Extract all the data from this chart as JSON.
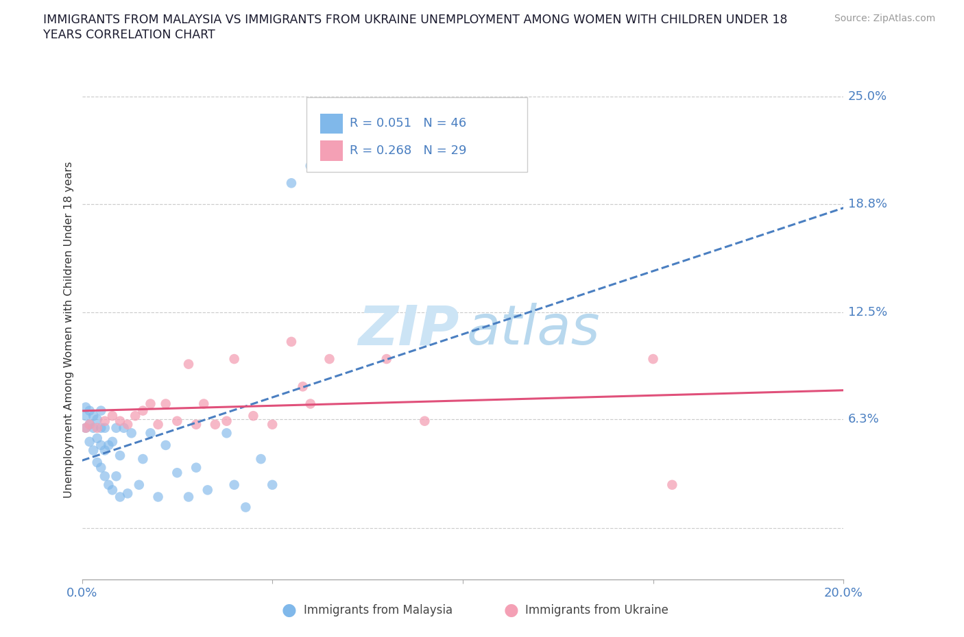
{
  "title_line1": "IMMIGRANTS FROM MALAYSIA VS IMMIGRANTS FROM UKRAINE UNEMPLOYMENT AMONG WOMEN WITH CHILDREN UNDER 18",
  "title_line2": "YEARS CORRELATION CHART",
  "source_text": "Source: ZipAtlas.com",
  "ylabel": "Unemployment Among Women with Children Under 18 years",
  "xlim": [
    0.0,
    0.2
  ],
  "ylim": [
    -0.03,
    0.26
  ],
  "xtick_positions": [
    0.0,
    0.05,
    0.1,
    0.15,
    0.2
  ],
  "xtick_labels": [
    "0.0%",
    "",
    "",
    "",
    "20.0%"
  ],
  "ytick_vals": [
    0.0,
    0.063,
    0.125,
    0.188,
    0.25
  ],
  "ytick_labels": [
    "",
    "6.3%",
    "12.5%",
    "18.8%",
    "25.0%"
  ],
  "grid_color": "#cccccc",
  "background_color": "#ffffff",
  "malaysia_color": "#80b8ea",
  "ukraine_color": "#f4a0b5",
  "trend_malaysia_color": "#4a7fc1",
  "trend_ukraine_color": "#e0507a",
  "r_malaysia": 0.051,
  "n_malaysia": 46,
  "r_ukraine": 0.268,
  "n_ukraine": 29,
  "malaysia_x": [
    0.001,
    0.001,
    0.001,
    0.002,
    0.002,
    0.002,
    0.003,
    0.003,
    0.003,
    0.004,
    0.004,
    0.004,
    0.005,
    0.005,
    0.005,
    0.005,
    0.006,
    0.006,
    0.006,
    0.007,
    0.007,
    0.008,
    0.008,
    0.009,
    0.009,
    0.01,
    0.01,
    0.011,
    0.012,
    0.013,
    0.015,
    0.016,
    0.018,
    0.02,
    0.022,
    0.025,
    0.028,
    0.03,
    0.033,
    0.038,
    0.04,
    0.043,
    0.047,
    0.05,
    0.055,
    0.06
  ],
  "malaysia_y": [
    0.058,
    0.065,
    0.07,
    0.05,
    0.06,
    0.068,
    0.045,
    0.058,
    0.065,
    0.038,
    0.052,
    0.063,
    0.035,
    0.048,
    0.058,
    0.068,
    0.03,
    0.045,
    0.058,
    0.025,
    0.048,
    0.022,
    0.05,
    0.03,
    0.058,
    0.018,
    0.042,
    0.058,
    0.02,
    0.055,
    0.025,
    0.04,
    0.055,
    0.018,
    0.048,
    0.032,
    0.018,
    0.035,
    0.022,
    0.055,
    0.025,
    0.012,
    0.04,
    0.025,
    0.2,
    0.21
  ],
  "ukraine_x": [
    0.001,
    0.002,
    0.004,
    0.006,
    0.008,
    0.01,
    0.012,
    0.014,
    0.016,
    0.018,
    0.02,
    0.022,
    0.025,
    0.028,
    0.03,
    0.032,
    0.035,
    0.038,
    0.04,
    0.045,
    0.05,
    0.055,
    0.058,
    0.06,
    0.065,
    0.08,
    0.09,
    0.15,
    0.155
  ],
  "ukraine_y": [
    0.058,
    0.06,
    0.058,
    0.062,
    0.065,
    0.062,
    0.06,
    0.065,
    0.068,
    0.072,
    0.06,
    0.072,
    0.062,
    0.095,
    0.06,
    0.072,
    0.06,
    0.062,
    0.098,
    0.065,
    0.06,
    0.108,
    0.082,
    0.072,
    0.098,
    0.098,
    0.062,
    0.098,
    0.025
  ],
  "watermark_zip_color": "#cce4f5",
  "watermark_atlas_color": "#b8d8ee",
  "label_color": "#4a7fc1",
  "dot_size": 110,
  "legend_r_color": "#4a7fc1"
}
